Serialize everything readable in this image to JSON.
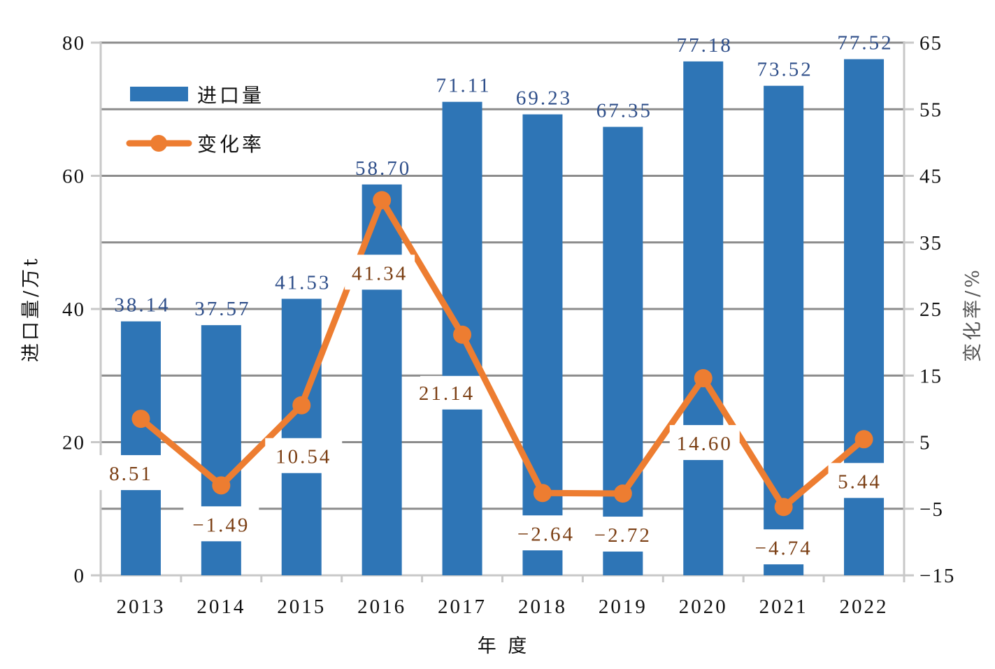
{
  "chart_data": {
    "type": "bar+line",
    "categories": [
      "2013",
      "2014",
      "2015",
      "2016",
      "2017",
      "2018",
      "2019",
      "2020",
      "2021",
      "2022"
    ],
    "series": [
      {
        "name": "进口量",
        "type": "bar",
        "axis": "left",
        "color": "#2E75B6",
        "values": [
          38.14,
          37.57,
          41.53,
          58.7,
          71.11,
          69.23,
          67.35,
          77.18,
          73.52,
          77.52
        ],
        "labels": [
          "38.14",
          "37.57",
          "41.53",
          "58.70",
          "71.11",
          "69.23",
          "67.35",
          "77.18",
          "73.52",
          "77.52"
        ]
      },
      {
        "name": "变化率",
        "type": "line",
        "axis": "right",
        "color": "#ED7D31",
        "values": [
          8.51,
          -1.49,
          10.54,
          41.34,
          21.14,
          -2.64,
          -2.72,
          14.6,
          -4.74,
          5.44
        ],
        "labels": [
          "8.51",
          "−1.49",
          "10.54",
          "41.34",
          "21.14",
          "−2.64",
          "−2.72",
          "14.60",
          "−4.74",
          "5.44"
        ]
      }
    ],
    "xlabel": "年 度",
    "ylabel": "进口量/万t",
    "y2label": "变化率/%",
    "ylim": [
      0,
      80
    ],
    "y2lim": [
      -15,
      65
    ],
    "yticks": [
      "0",
      "20",
      "40",
      "60",
      "80"
    ],
    "y2ticks": [
      "−15",
      "−5",
      "5",
      "15",
      "25",
      "35",
      "45",
      "55",
      "65"
    ],
    "grid": true,
    "legend": "top-left"
  }
}
